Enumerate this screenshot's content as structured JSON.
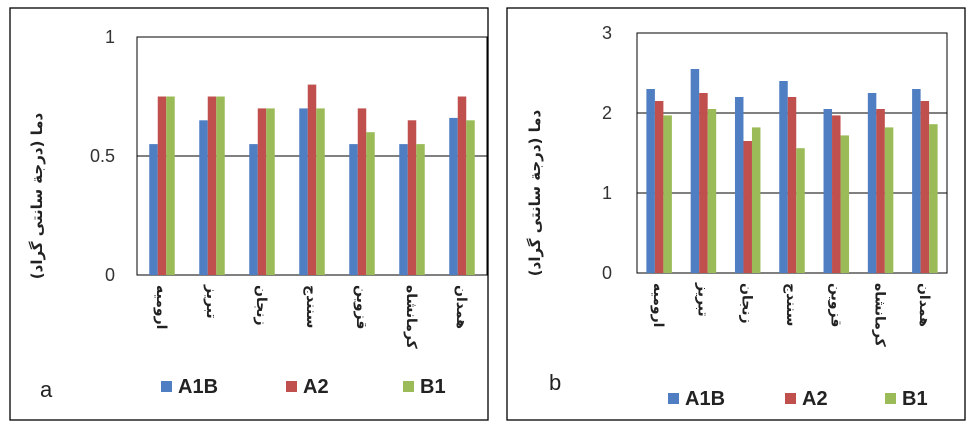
{
  "colors": {
    "A1B": "#4f7ec2",
    "A2": "#c0504d",
    "B1": "#9bbb59"
  },
  "chart_data": [
    {
      "type": "bar",
      "panel_label": "a",
      "ylabel": "دما (درجة سانتی گراد)",
      "yticks": [
        "0",
        "0.5",
        "1"
      ],
      "ylim": [
        0,
        1
      ],
      "grid": true,
      "legend": "bottom",
      "categories": [
        "ارومیه",
        "تبریز",
        "زنجان",
        "سنندج",
        "قزوین",
        "کرمانشاه",
        "همدان"
      ],
      "series": [
        {
          "name": "A1B",
          "values": [
            0.55,
            0.65,
            0.55,
            0.7,
            0.55,
            0.55,
            0.66
          ]
        },
        {
          "name": "A2",
          "values": [
            0.75,
            0.75,
            0.7,
            0.8,
            0.7,
            0.65,
            0.75
          ]
        },
        {
          "name": "B1",
          "values": [
            0.75,
            0.75,
            0.7,
            0.7,
            0.6,
            0.55,
            0.65
          ]
        }
      ]
    },
    {
      "type": "bar",
      "panel_label": "b",
      "ylabel": "دما (درجة سانتی گراد)",
      "yticks": [
        "0",
        "1",
        "2",
        "3"
      ],
      "ylim": [
        0,
        3
      ],
      "grid": true,
      "legend": "bottom",
      "categories": [
        "ارومیه",
        "تبریز",
        "زنجان",
        "سنندج",
        "قزوین",
        "کرمانشاه",
        "همدان"
      ],
      "series": [
        {
          "name": "A1B",
          "values": [
            2.3,
            2.55,
            2.2,
            2.4,
            2.05,
            2.25,
            2.3
          ]
        },
        {
          "name": "A2",
          "values": [
            2.15,
            2.25,
            1.65,
            2.2,
            1.97,
            2.05,
            2.15
          ]
        },
        {
          "name": "B1",
          "values": [
            1.97,
            2.05,
            1.82,
            1.56,
            1.72,
            1.82,
            1.86
          ]
        }
      ]
    }
  ]
}
